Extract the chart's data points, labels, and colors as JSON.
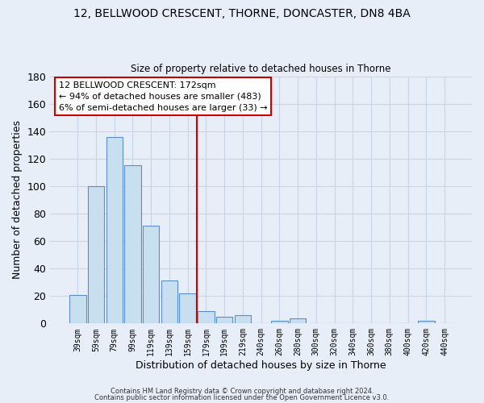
{
  "title": "12, BELLWOOD CRESCENT, THORNE, DONCASTER, DN8 4BA",
  "subtitle": "Size of property relative to detached houses in Thorne",
  "xlabel": "Distribution of detached houses by size in Thorne",
  "ylabel": "Number of detached properties",
  "bar_color": "#c8dff0",
  "bar_edge_color": "#5a8fcc",
  "categories": [
    "39sqm",
    "59sqm",
    "79sqm",
    "99sqm",
    "119sqm",
    "139sqm",
    "159sqm",
    "179sqm",
    "199sqm",
    "219sqm",
    "240sqm",
    "260sqm",
    "280sqm",
    "300sqm",
    "320sqm",
    "340sqm",
    "360sqm",
    "380sqm",
    "400sqm",
    "420sqm",
    "440sqm"
  ],
  "values": [
    21,
    100,
    136,
    115,
    71,
    31,
    22,
    9,
    5,
    6,
    0,
    2,
    4,
    0,
    0,
    0,
    0,
    0,
    0,
    2,
    0
  ],
  "ylim": [
    0,
    180
  ],
  "yticks": [
    0,
    20,
    40,
    60,
    80,
    100,
    120,
    140,
    160,
    180
  ],
  "vline_color": "#cc0000",
  "annotation_title": "12 BELLWOOD CRESCENT: 172sqm",
  "annotation_line1": "← 94% of detached houses are smaller (483)",
  "annotation_line2": "6% of semi-detached houses are larger (33) →",
  "annotation_box_color": "#ffffff",
  "annotation_box_edge": "#cc0000",
  "footer1": "Contains HM Land Registry data © Crown copyright and database right 2024.",
  "footer2": "Contains public sector information licensed under the Open Government Licence v3.0.",
  "background_color": "#e8eef8",
  "grid_color": "#c8d4e8"
}
